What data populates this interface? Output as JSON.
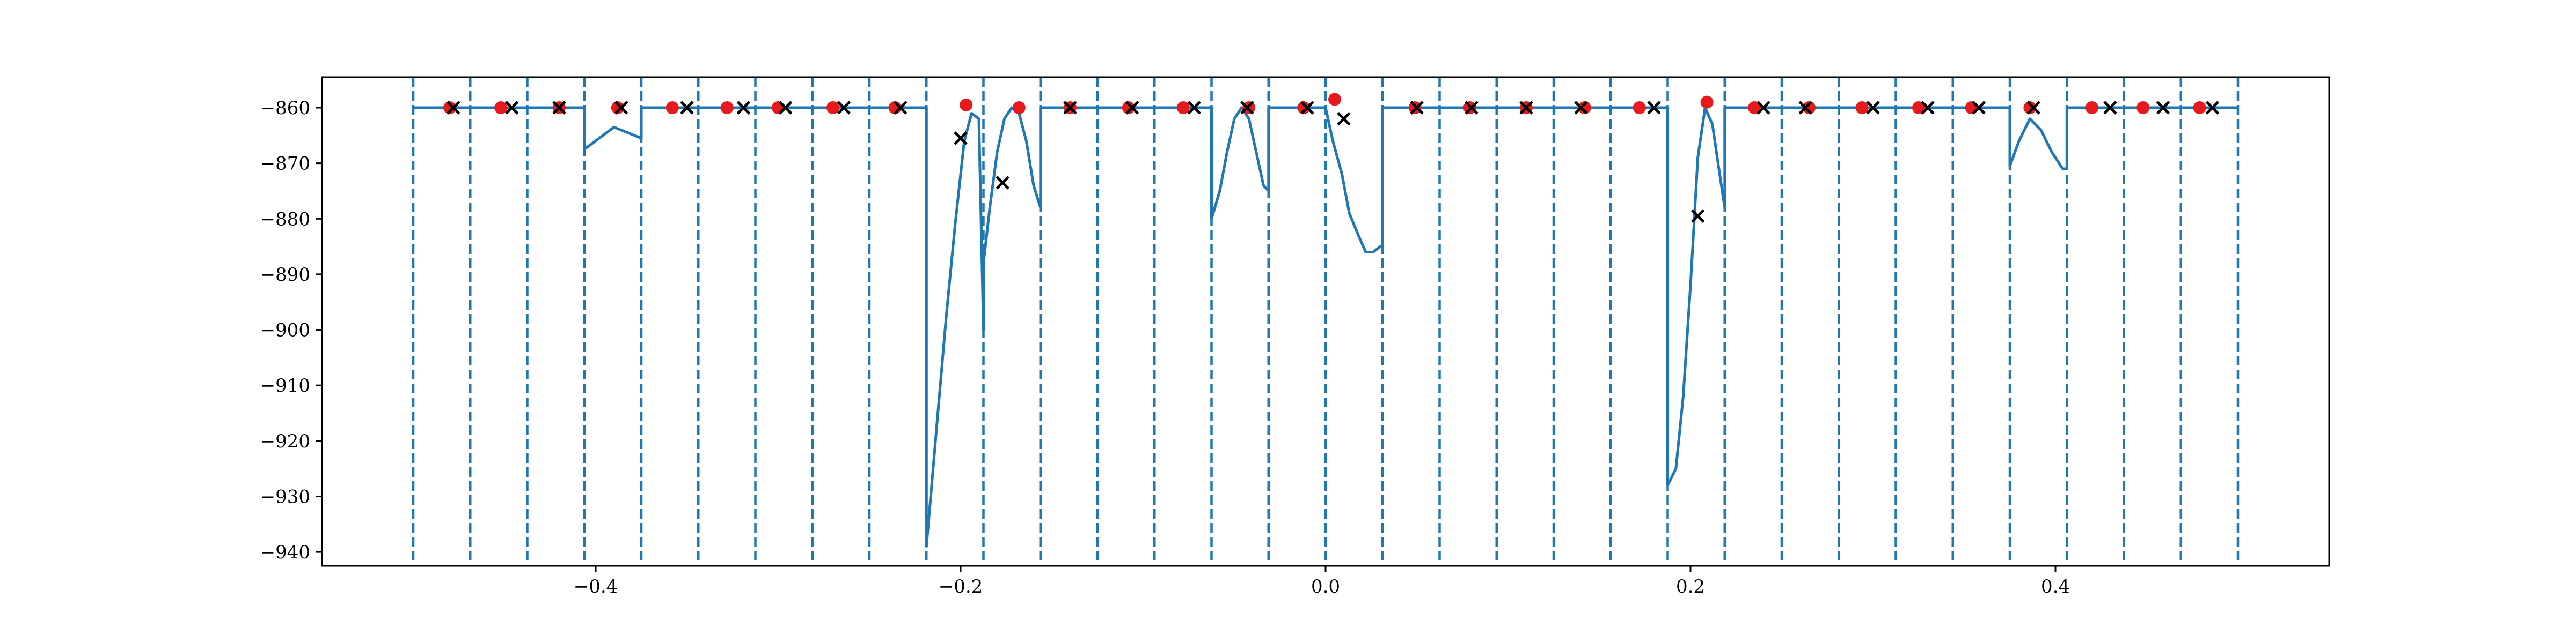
{
  "chart_data": {
    "type": "line",
    "title": "",
    "xlabel": "",
    "ylabel": "",
    "xlim": [
      -0.55,
      0.55
    ],
    "ylim": [
      -942.5,
      -854.5
    ],
    "x_ticks": [
      -0.4,
      -0.2,
      0.0,
      0.2,
      0.4
    ],
    "x_tick_labels": [
      "−0.4",
      "−0.2",
      "0.0",
      "0.2",
      "0.4"
    ],
    "y_ticks": [
      -860,
      -870,
      -880,
      -890,
      -900,
      -910,
      -920,
      -930,
      -940
    ],
    "y_tick_labels": [
      "−860",
      "−870",
      "−880",
      "−890",
      "−900",
      "−910",
      "−920",
      "−930",
      "−940"
    ],
    "grid": false,
    "legend": "none",
    "colors": {
      "line": "#1f77b4",
      "boundary": "#1f77b4",
      "dot": "#e8191c",
      "cross": "#000000",
      "axes": "#000000"
    },
    "boundaries": [
      -0.5,
      -0.46875,
      -0.4375,
      -0.40625,
      -0.375,
      -0.34375,
      -0.3125,
      -0.28125,
      -0.25,
      -0.21875,
      -0.1875,
      -0.15625,
      -0.125,
      -0.09375,
      -0.0625,
      -0.03125,
      0.0,
      0.03125,
      0.0625,
      0.09375,
      0.125,
      0.15625,
      0.1875,
      0.21875,
      0.25,
      0.28125,
      0.3125,
      0.34375,
      0.375,
      0.40625,
      0.4375,
      0.46875,
      0.5
    ],
    "series": [
      {
        "style": "line",
        "x": [
          -0.5,
          -0.40625,
          -0.40625,
          -0.39,
          -0.375,
          -0.375,
          -0.21875,
          -0.21875,
          -0.213,
          -0.208,
          -0.203,
          -0.198,
          -0.194,
          -0.19,
          -0.1875,
          -0.1875,
          -0.184,
          -0.18,
          -0.176,
          -0.172,
          -0.168,
          -0.164,
          -0.16,
          -0.15625,
          -0.15625,
          -0.0625,
          -0.0625,
          -0.058,
          -0.054,
          -0.05,
          -0.046,
          -0.042,
          -0.038,
          -0.034,
          -0.03125,
          -0.03125,
          0.0,
          0.004,
          0.009,
          0.013,
          0.018,
          0.022,
          0.026,
          0.03,
          0.03125,
          0.03125,
          0.1875,
          0.1875,
          0.192,
          0.196,
          0.2,
          0.204,
          0.208,
          0.212,
          0.216,
          0.21875,
          0.21875,
          0.375,
          0.375,
          0.38,
          0.386,
          0.392,
          0.398,
          0.404,
          0.40625,
          0.40625,
          0.5
        ],
        "y": [
          -860,
          -860,
          -867.5,
          -863.5,
          -865.5,
          -860,
          -860,
          -939,
          -917,
          -898,
          -881,
          -866,
          -861,
          -862,
          -900,
          -888,
          -878,
          -868,
          -862,
          -860,
          -861,
          -866,
          -874,
          -878,
          -860,
          -860,
          -880,
          -875,
          -868,
          -862,
          -860,
          -862,
          -868,
          -874,
          -875,
          -860,
          -860,
          -866,
          -872,
          -879,
          -883,
          -886,
          -886,
          -885,
          -885,
          -860,
          -860,
          -928,
          -925,
          -912,
          -892,
          -869,
          -860,
          -863,
          -872,
          -878,
          -860,
          -860,
          -870.5,
          -866,
          -862,
          -864,
          -868,
          -871,
          -871,
          -860,
          -860
        ]
      },
      {
        "style": "dots",
        "x": [
          -0.48,
          -0.452,
          -0.42,
          -0.388,
          -0.358,
          -0.328,
          -0.3,
          -0.27,
          -0.236,
          -0.197,
          -0.168,
          -0.14,
          -0.108,
          -0.078,
          -0.042,
          -0.012,
          0.005,
          0.049,
          0.079,
          0.11,
          0.142,
          0.172,
          0.209,
          0.235,
          0.265,
          0.294,
          0.325,
          0.354,
          0.386,
          0.42,
          0.448,
          0.479
        ],
        "y": [
          -860,
          -860,
          -860,
          -860,
          -860,
          -860,
          -860,
          -860,
          -860,
          -859.5,
          -860,
          -860,
          -860,
          -860,
          -860,
          -860,
          -858.5,
          -860,
          -860,
          -860,
          -860,
          -860,
          -859,
          -860,
          -860,
          -860,
          -860,
          -860,
          -860,
          -860,
          -860,
          -860
        ]
      },
      {
        "style": "crosses",
        "x": [
          -0.478,
          -0.446,
          -0.42,
          -0.386,
          -0.35,
          -0.319,
          -0.296,
          -0.264,
          -0.233,
          -0.2,
          -0.177,
          -0.14,
          -0.106,
          -0.072,
          -0.043,
          -0.01,
          0.01,
          0.05,
          0.08,
          0.11,
          0.14,
          0.18,
          0.204,
          0.24,
          0.263,
          0.3,
          0.33,
          0.358,
          0.388,
          0.43,
          0.459,
          0.486
        ],
        "y": [
          -860,
          -860,
          -860,
          -860,
          -860,
          -860,
          -860,
          -860,
          -860,
          -865.5,
          -873.5,
          -860,
          -860,
          -860,
          -860,
          -860,
          -862,
          -860,
          -860,
          -860,
          -860,
          -860,
          -879.5,
          -860,
          -860,
          -860,
          -860,
          -860,
          -860,
          -860,
          -860,
          -860
        ]
      }
    ]
  }
}
